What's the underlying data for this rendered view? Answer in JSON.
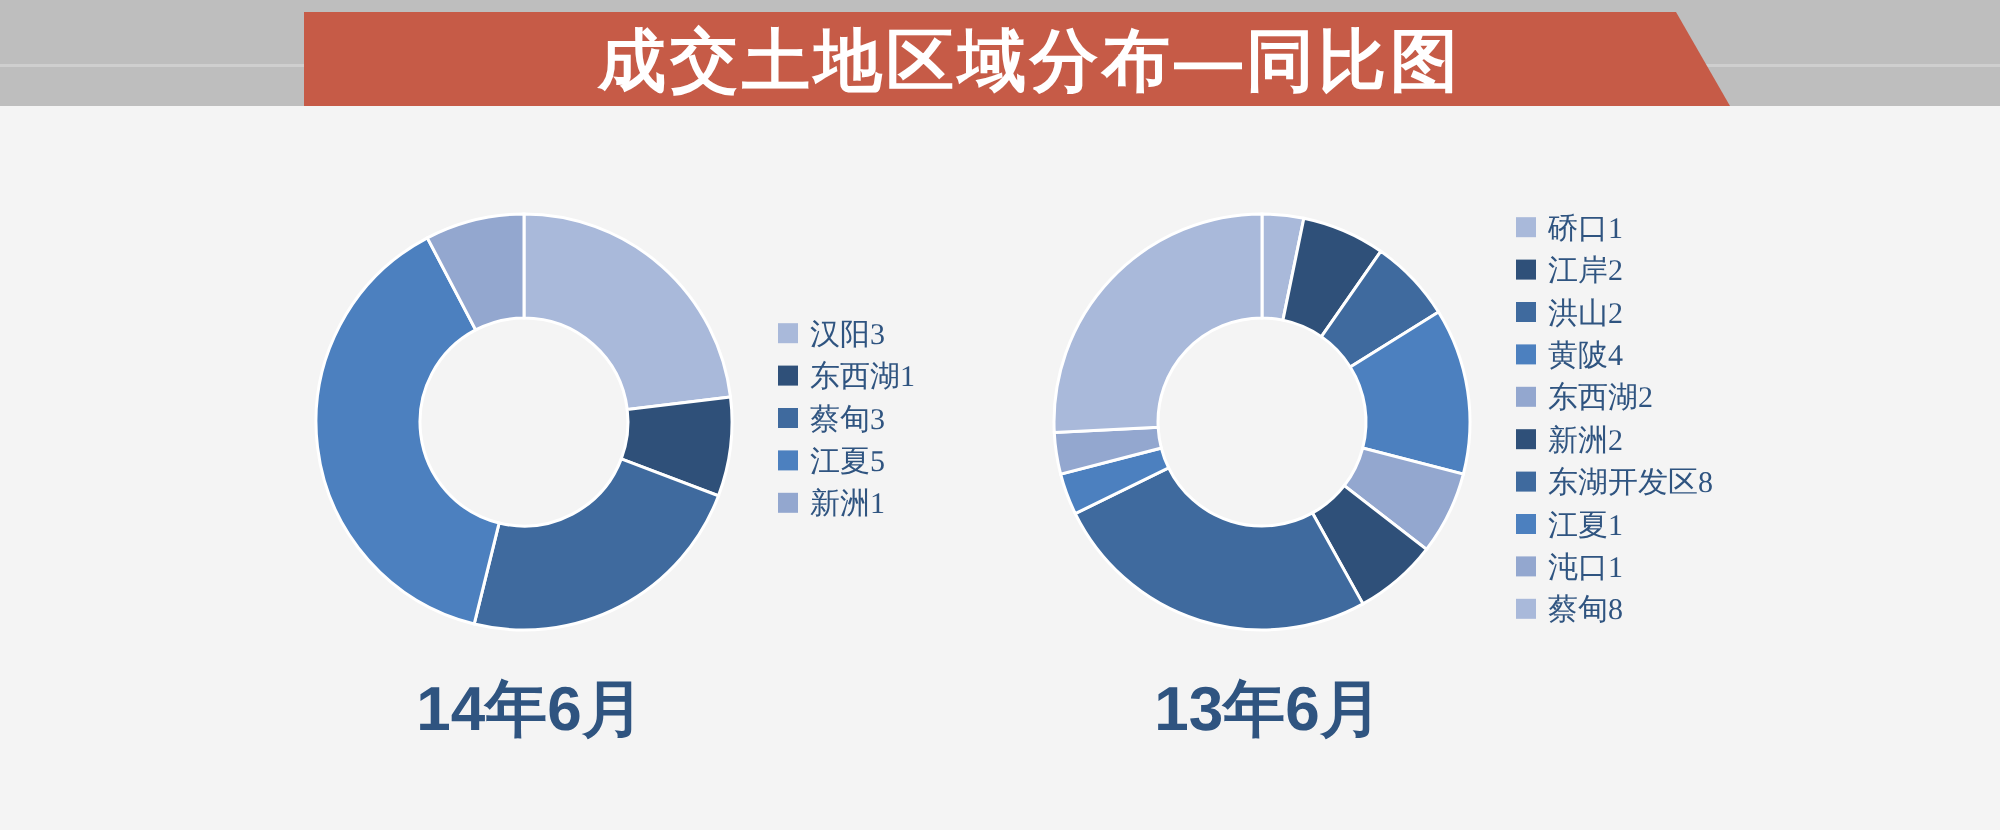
{
  "chart_data": [
    {
      "type": "donut",
      "title": "成交土地区域分布—同比图",
      "xlabel": "14年6月",
      "categories": [
        "汉阳3",
        "东西湖1",
        "蔡甸3",
        "江夏5",
        "新洲1"
      ],
      "values": [
        3,
        1,
        3,
        5,
        1
      ],
      "colors": [
        "#a9b9da",
        "#2f5079",
        "#3f6a9e",
        "#4c80bf",
        "#93a7cf"
      ],
      "legend": "right"
    },
    {
      "type": "donut",
      "xlabel": "13年6月",
      "categories": [
        "硚口1",
        "江岸2",
        "洪山2",
        "黄陂4",
        "东西湖2",
        "新洲2",
        "东湖开发区8",
        "江夏1",
        "沌口1",
        "蔡甸8"
      ],
      "values": [
        1,
        2,
        2,
        4,
        2,
        2,
        8,
        1,
        1,
        8
      ],
      "colors": [
        "#a9b9da",
        "#2f5079",
        "#3f6a9e",
        "#4c80bf",
        "#93a7cf",
        "#2f5079",
        "#3f6a9e",
        "#4c80bf",
        "#93a7cf",
        "#a9b9da"
      ],
      "legend": "right"
    }
  ]
}
